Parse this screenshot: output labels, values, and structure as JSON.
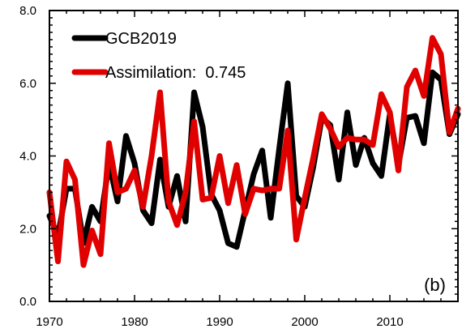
{
  "chart_data": {
    "type": "line",
    "panel_label": "(b)",
    "xlim": [
      1970,
      2018
    ],
    "ylim": [
      0,
      8
    ],
    "x_ticks": [
      1970,
      1980,
      1990,
      2000,
      2010
    ],
    "y_ticks": [
      0.0,
      2.0,
      4.0,
      6.0,
      8.0
    ],
    "x_tick_labels": [
      "1970",
      "1980",
      "1990",
      "2000",
      "2010"
    ],
    "y_tick_labels": [
      "0.0",
      "2.0",
      "4.0",
      "6.0",
      "8.0"
    ],
    "grid": false,
    "legend_position": "top-left",
    "x": [
      1970,
      1971,
      1972,
      1973,
      1974,
      1975,
      1976,
      1977,
      1978,
      1979,
      1980,
      1981,
      1982,
      1983,
      1984,
      1985,
      1986,
      1987,
      1988,
      1989,
      1990,
      1991,
      1992,
      1993,
      1994,
      1995,
      1996,
      1997,
      1998,
      1999,
      2000,
      2001,
      2002,
      2003,
      2004,
      2005,
      2006,
      2007,
      2008,
      2009,
      2010,
      2011,
      2012,
      2013,
      2014,
      2015,
      2016,
      2017,
      2018
    ],
    "series": [
      {
        "name": "GCB2019",
        "color": "#000000",
        "values": [
          2.35,
          1.8,
          3.1,
          3.1,
          1.6,
          2.6,
          2.2,
          3.8,
          2.75,
          4.55,
          3.8,
          2.5,
          2.15,
          3.9,
          2.6,
          3.45,
          2.2,
          5.75,
          4.8,
          2.95,
          2.5,
          1.6,
          1.5,
          2.5,
          3.5,
          4.15,
          2.3,
          4.2,
          6.0,
          2.9,
          2.6,
          3.7,
          5.05,
          4.85,
          3.35,
          5.2,
          3.75,
          4.5,
          3.8,
          3.45,
          5.15,
          3.75,
          5.05,
          5.1,
          4.35,
          6.3,
          6.1,
          4.6,
          5.15
        ]
      },
      {
        "name": "Assimilation:  0.745",
        "color": "#e00000",
        "values": [
          3.0,
          1.1,
          3.85,
          3.35,
          1.0,
          1.95,
          1.3,
          4.35,
          3.0,
          3.1,
          3.6,
          2.6,
          4.0,
          5.75,
          2.75,
          2.1,
          3.0,
          4.95,
          2.8,
          2.85,
          4.0,
          2.7,
          3.75,
          2.4,
          3.1,
          3.05,
          3.1,
          3.1,
          4.7,
          1.7,
          2.85,
          3.95,
          5.15,
          4.75,
          4.25,
          4.5,
          4.45,
          4.45,
          4.3,
          5.7,
          5.2,
          3.6,
          5.9,
          6.35,
          5.65,
          7.25,
          6.8,
          4.65,
          5.3
        ]
      }
    ]
  }
}
